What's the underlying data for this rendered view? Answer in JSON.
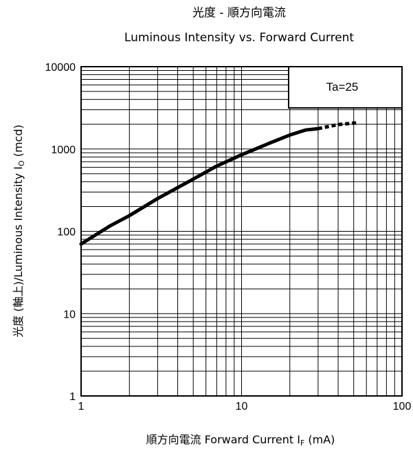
{
  "chart_data": {
    "type": "line",
    "title": "光度 - 順方向電流",
    "subtitle": "Luminous Intensity vs. Forward Current",
    "xlabel": {
      "prefix": "順方向電流 Forward Current I",
      "sub": "F",
      "suffix": " (mA)"
    },
    "ylabel": {
      "prefix": "光度 (軸上)/Luminous Intensity I",
      "sub": "O",
      "suffix": " (mcd)"
    },
    "x_scale": "log",
    "y_scale": "log",
    "xlim": [
      1,
      100
    ],
    "ylim": [
      1,
      10000
    ],
    "x_ticks": [
      1,
      10,
      100
    ],
    "x_tick_labels": [
      "1",
      "10",
      "100"
    ],
    "y_ticks": [
      1,
      10,
      100,
      1000,
      10000
    ],
    "y_tick_labels": [
      "1",
      "10",
      "100",
      "1000",
      "10000"
    ],
    "grid": true,
    "legend_placement": "top-right",
    "legend_text": "Ta=25",
    "series": [
      {
        "style": "solid",
        "x": [
          1,
          1.5,
          2,
          3,
          5,
          7,
          10,
          15,
          20,
          25,
          30
        ],
        "y": [
          70,
          115,
          155,
          250,
          430,
          620,
          850,
          1180,
          1480,
          1700,
          1770
        ]
      },
      {
        "style": "dashed",
        "x": [
          30,
          40,
          52
        ],
        "y": [
          1770,
          1980,
          2080
        ]
      }
    ]
  },
  "colors": {
    "line": "#000000",
    "grid": "#000000",
    "background": "#ffffff"
  }
}
